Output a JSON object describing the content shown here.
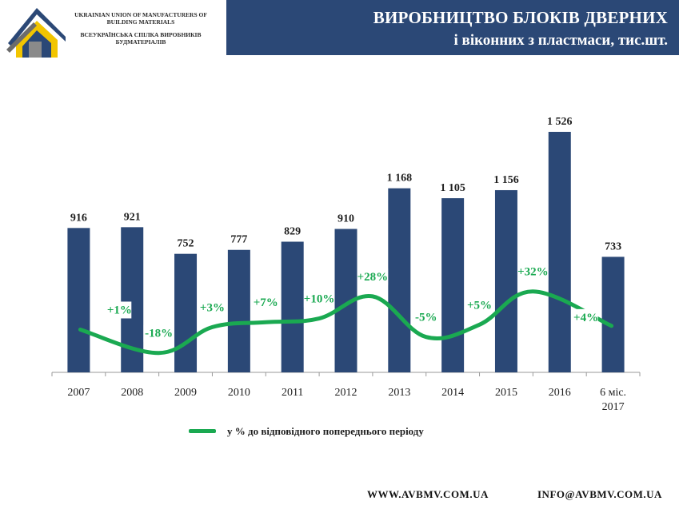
{
  "header": {
    "org_en": "UKRAINIAN UNION OF MANUFACTURERS OF BUILDING MATERIALS",
    "org_ua": "ВСЕУКРАЇНСЬКА СПІЛКА ВИРОБНИКІВ БУДМАТЕРІАЛІВ",
    "title_line1": "ВИРОБНИЦТВО БЛОКІВ ДВЕРНИХ",
    "title_line2": "і віконних з пластмаси, тис.шт."
  },
  "logo": {
    "icon": "house-logo-icon",
    "colors": [
      "#2b4876",
      "#f2c500",
      "#8a8a8a"
    ]
  },
  "colors": {
    "bar": "#2b4876",
    "line": "#1aa951",
    "title_bg": "#2b4876"
  },
  "chart_data": {
    "type": "bar",
    "categories": [
      "2007",
      "2008",
      "2009",
      "2010",
      "2011",
      "2012",
      "2013",
      "2014",
      "2015",
      "2016",
      "6 міс. 2017"
    ],
    "values": [
      916,
      921,
      752,
      777,
      829,
      910,
      1168,
      1105,
      1156,
      1526,
      733
    ],
    "value_labels": [
      "916",
      "921",
      "752",
      "777",
      "829",
      "910",
      "1 168",
      "1 105",
      "1 156",
      "1 526",
      "733"
    ],
    "ylim": [
      0,
      1526
    ],
    "line_series": {
      "name": "у % до відповідного попереднього періоду",
      "values": [
        1,
        -18,
        3,
        7,
        10,
        28,
        -5,
        5,
        32,
        4
      ],
      "labels": [
        "+1%",
        "-18%",
        "+3%",
        "+7%",
        "+10%",
        "+28%",
        "-5%",
        "+5%",
        "+32%",
        "+4%"
      ]
    },
    "legend_position": "bottom",
    "grid": false
  },
  "footer": {
    "website": "WWW.AVBMV.COM.UA",
    "email": "INFO@AVBMV.COM.UA"
  }
}
